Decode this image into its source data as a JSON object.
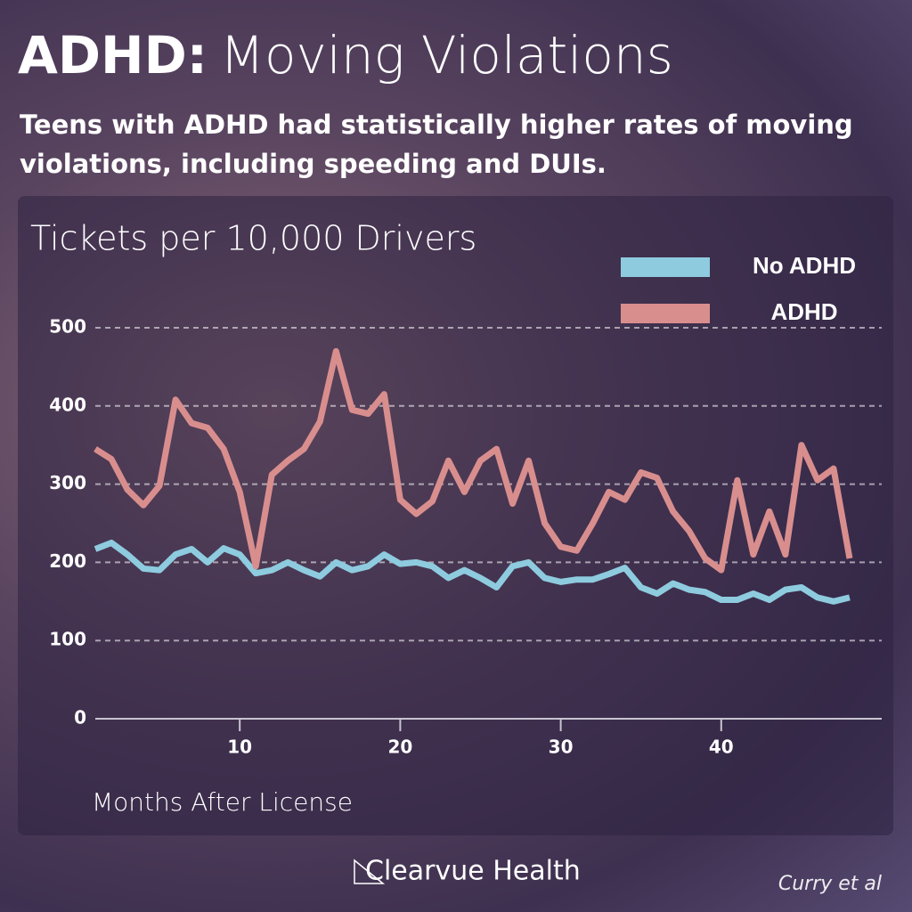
{
  "title_parts": [
    "ADHD:",
    "Moving Violations"
  ],
  "subtitle": "Teens with ADHD had statistically higher rates of moving violations, including speeding and DUIs.",
  "chart_data": {
    "type": "line",
    "title": "Tickets per 10,000 Drivers",
    "x_label": "Months After License",
    "x": [
      1,
      2,
      3,
      4,
      5,
      6,
      7,
      8,
      9,
      10,
      11,
      12,
      13,
      14,
      15,
      16,
      17,
      18,
      19,
      20,
      21,
      22,
      23,
      24,
      25,
      26,
      27,
      28,
      29,
      30,
      31,
      32,
      33,
      34,
      35,
      36,
      37,
      38,
      39,
      40,
      41,
      42,
      43,
      44,
      45,
      46,
      47,
      48
    ],
    "series": [
      {
        "name": "No ADHD",
        "color": "#8ecbdf",
        "values": [
          217,
          225,
          210,
          192,
          190,
          210,
          217,
          200,
          218,
          210,
          186,
          190,
          200,
          190,
          182,
          200,
          190,
          195,
          210,
          198,
          200,
          195,
          180,
          190,
          180,
          168,
          195,
          200,
          180,
          175,
          178,
          178,
          185,
          193,
          168,
          160,
          173,
          165,
          162,
          152,
          152,
          160,
          152,
          165,
          168,
          155,
          150,
          155
        ]
      },
      {
        "name": "ADHD",
        "color": "#d98e8e",
        "values": [
          345,
          332,
          293,
          273,
          298,
          408,
          378,
          372,
          345,
          290,
          195,
          312,
          330,
          345,
          380,
          470,
          395,
          390,
          415,
          280,
          262,
          278,
          330,
          290,
          330,
          345,
          275,
          330,
          250,
          220,
          215,
          250,
          290,
          280,
          315,
          308,
          265,
          240,
          205,
          190,
          305,
          210,
          265,
          210,
          350,
          305,
          320,
          205
        ]
      }
    ],
    "xlim": [
      1,
      50
    ],
    "xticks": [
      10,
      20,
      30,
      40
    ],
    "ylim": [
      0,
      500
    ],
    "yticks": [
      0,
      100,
      200,
      300,
      400,
      500
    ],
    "grid": true,
    "legend": "top-right"
  },
  "footer": {
    "logo": "Clearvue Health",
    "source": "Curry et al"
  }
}
